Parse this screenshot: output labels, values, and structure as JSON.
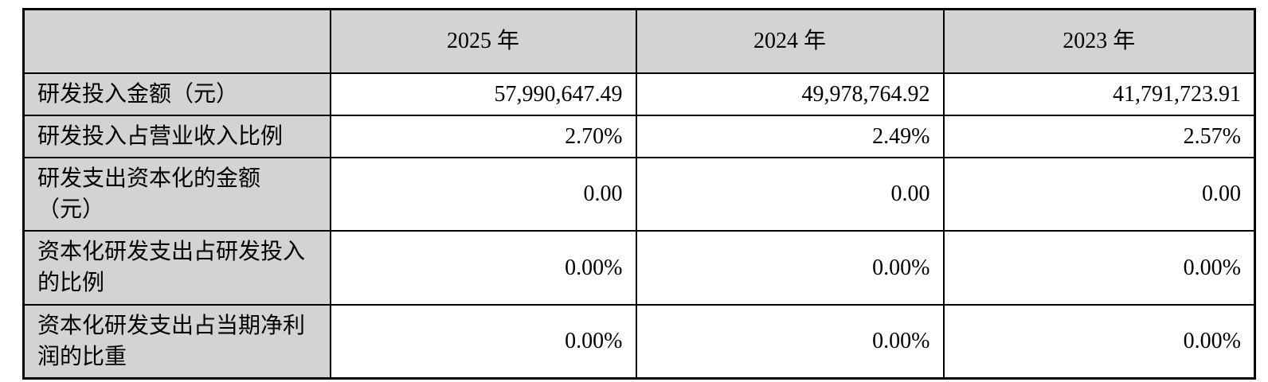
{
  "table": {
    "title_semantic": "rd-investment-table",
    "colors": {
      "header_bg": "#d3d3d3",
      "label_column_bg": "#d3d3d3",
      "value_cell_bg": "#ffffff",
      "border": "#000000",
      "text": "#000000"
    },
    "header": {
      "label_col": "",
      "years": [
        "2025 年",
        "2024 年",
        "2023 年"
      ]
    },
    "rows": [
      {
        "label": "研发投入金额（元）",
        "values": [
          "57,990,647.49",
          "49,978,764.92",
          "41,791,723.91"
        ]
      },
      {
        "label": "研发投入占营业收入比例",
        "values": [
          "2.70%",
          "2.49%",
          "2.57%"
        ]
      },
      {
        "label": "研发支出资本化的金额\n（元）",
        "values": [
          "0.00",
          "0.00",
          "0.00"
        ]
      },
      {
        "label": "资本化研发支出占研发投入\n的比例",
        "values": [
          "0.00%",
          "0.00%",
          "0.00%"
        ]
      },
      {
        "label": "资本化研发支出占当期净利\n润的比重",
        "values": [
          "0.00%",
          "0.00%",
          "0.00%"
        ]
      }
    ]
  }
}
